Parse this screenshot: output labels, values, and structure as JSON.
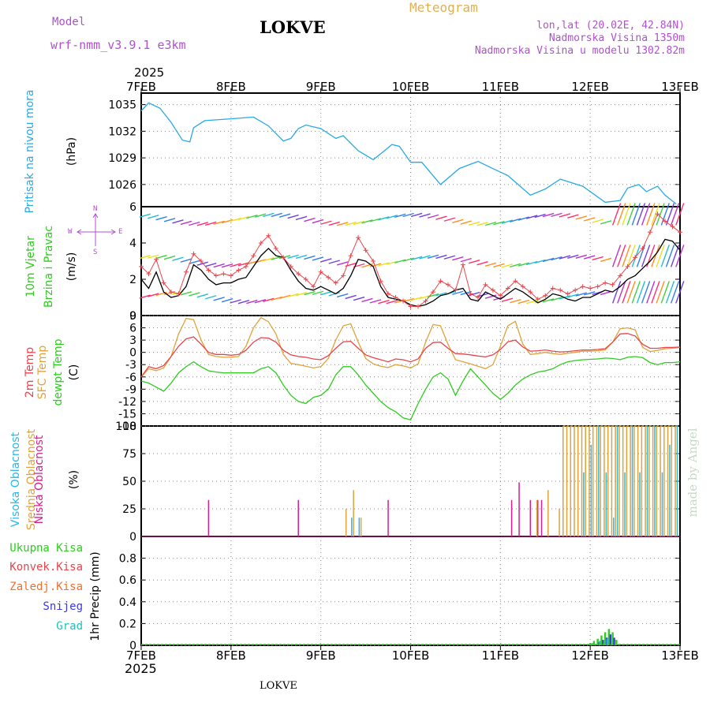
{
  "header": {
    "model_label": "Model",
    "model_name": "wrf-nmm_v3.9.1  e3km",
    "station": "LOKVE",
    "meteogram": "Meteogram",
    "coords": "lon,lat (20.02E, 42.84N)",
    "elevation": "Nadmorska Visina 1350m",
    "model_elevation": "Nadmorska Visina u modelu 1302.82m",
    "footer_station": "LOKVE",
    "credit": "made by Angel"
  },
  "time_axis": {
    "year": "2025",
    "labels": [
      "7FEB",
      "8FEB",
      "9FEB",
      "10FEB",
      "11FEB",
      "12FEB",
      "13FEB"
    ]
  },
  "colors": {
    "pressure": "#29a9e6",
    "wind": "#000000",
    "gust": "#e8454b",
    "temp2m": "#e8454b",
    "sfc": "#e0a23c",
    "dew": "#2ecc1e",
    "high_cloud": "#28b8e8",
    "mid_cloud": "#e0a23c",
    "low_cloud": "#d41f8f",
    "total_precip": "#2ecc1e",
    "snow": "#3a3ae0",
    "grad": "#20c0c0"
  },
  "panels": {
    "pressure": {
      "label": "Pritisak na nivou mora",
      "unit": "(hPa)"
    },
    "wind": {
      "label1": "10m Vjetar",
      "label2": "Brzina i Pravac",
      "unit": "(m/s)",
      "compass_n": "N",
      "compass_s": "S",
      "compass_w": "W",
      "compass_e": "E"
    },
    "temp": {
      "label1": "2m Temp",
      "label2": "SFC Temp",
      "label3": "dewpt Temp",
      "unit": "(C)"
    },
    "cloud": {
      "label1": "Visoka Oblacnost",
      "label2": "Srednja Oblacnost",
      "label3": "Niska Oblacnost",
      "unit": "(%)"
    },
    "precip": {
      "legend": [
        "Ukupna Kisa",
        "Konvek.Kisa",
        "Zaledj.Kisa",
        "Snijeg",
        "Grad"
      ],
      "unit": "1hr Precip (mm)"
    }
  },
  "chart_data": [
    {
      "type": "line",
      "title": "Pritisak na nivou mora",
      "ylabel": "(hPa)",
      "ylim": [
        1023.5,
        1036.3
      ],
      "yticks": [
        "1026",
        "1029",
        "1032",
        "1035"
      ],
      "x_hours": [
        0,
        2,
        5,
        8,
        11,
        13,
        14,
        17,
        24,
        30,
        34,
        38,
        40,
        42,
        44,
        48,
        52,
        54,
        58,
        62,
        65,
        67,
        69,
        72,
        75,
        80,
        85,
        90,
        93,
        98,
        104,
        108,
        112,
        118,
        124,
        128,
        130,
        133,
        135,
        138,
        140,
        143
      ],
      "series": [
        {
          "name": "pressure",
          "values": [
            1034.3,
            1035.2,
            1034.6,
            1033.0,
            1031.0,
            1030.8,
            1032.4,
            1033.2,
            1033.4,
            1033.6,
            1032.6,
            1030.9,
            1031.2,
            1032.3,
            1032.7,
            1032.3,
            1031.2,
            1031.5,
            1029.8,
            1028.8,
            1029.8,
            1030.5,
            1030.3,
            1028.5,
            1028.5,
            1026.0,
            1027.8,
            1028.6,
            1028.0,
            1027.0,
            1024.8,
            1025.5,
            1026.6,
            1025.8,
            1024.0,
            1024.2,
            1025.6,
            1026.0,
            1025.2,
            1025.8,
            1024.8,
            1023.8
          ]
        }
      ]
    },
    {
      "type": "line",
      "title": "10m Vjetar Brzina i Pravac",
      "ylabel": "(m/s)",
      "ylim": [
        0,
        6
      ],
      "yticks": [
        "0",
        "2",
        "4",
        "6"
      ],
      "x_hours": [
        0,
        2,
        4,
        6,
        8,
        10,
        12,
        14,
        16,
        18,
        20,
        22,
        24,
        26,
        28,
        30,
        32,
        34,
        36,
        38,
        40,
        42,
        44,
        46,
        48,
        50,
        52,
        54,
        56,
        58,
        60,
        62,
        64,
        66,
        68,
        70,
        72,
        74,
        76,
        78,
        80,
        82,
        84,
        86,
        88,
        90,
        92,
        94,
        96,
        98,
        100,
        102,
        104,
        106,
        108,
        110,
        112,
        114,
        116,
        118,
        120,
        122,
        124,
        126,
        128,
        130,
        132,
        134,
        136,
        138,
        140,
        142,
        144
      ],
      "series": [
        {
          "name": "wind speed",
          "values": [
            2.0,
            1.5,
            2.4,
            1.3,
            1.0,
            1.1,
            1.6,
            2.8,
            2.5,
            2.0,
            1.7,
            1.8,
            1.8,
            2.0,
            2.1,
            2.7,
            3.3,
            3.7,
            3.3,
            3.2,
            2.5,
            1.9,
            1.5,
            1.4,
            1.6,
            1.4,
            1.2,
            1.5,
            2.2,
            3.1,
            3.0,
            2.7,
            1.6,
            1.0,
            0.9,
            0.8,
            0.6,
            0.5,
            0.6,
            0.8,
            1.1,
            1.2,
            1.4,
            1.5,
            0.9,
            0.8,
            1.3,
            1.1,
            0.9,
            1.2,
            1.5,
            1.3,
            1.0,
            0.7,
            0.9,
            1.2,
            1.1,
            0.9,
            0.8,
            1.0,
            1.0,
            1.2,
            1.4,
            1.3,
            1.6,
            2.0,
            2.2,
            2.6,
            3.0,
            3.5,
            4.2,
            4.1,
            3.6
          ]
        },
        {
          "name": "wind gust",
          "values": [
            2.7,
            2.3,
            3.1,
            1.8,
            1.3,
            1.2,
            2.4,
            3.4,
            3.0,
            2.5,
            2.2,
            2.3,
            2.2,
            2.5,
            2.7,
            3.3,
            4.0,
            4.4,
            3.7,
            3.2,
            2.7,
            2.3,
            2.0,
            1.6,
            2.4,
            2.1,
            1.8,
            2.2,
            3.3,
            4.3,
            3.6,
            3.0,
            1.9,
            1.2,
            1.0,
            0.8,
            0.5,
            0.5,
            0.8,
            1.3,
            1.9,
            1.7,
            1.4,
            2.8,
            1.2,
            1.0,
            1.7,
            1.4,
            1.1,
            1.5,
            1.9,
            1.6,
            1.3,
            0.9,
            1.1,
            1.5,
            1.4,
            1.2,
            1.4,
            1.6,
            1.5,
            1.6,
            1.8,
            1.7,
            2.2,
            2.7,
            3.2,
            3.7,
            4.6,
            5.6,
            5.2,
            4.9,
            4.6
          ]
        }
      ]
    },
    {
      "type": "line",
      "title": "2m Temp / SFC Temp / dewpt Temp",
      "ylabel": "(C)",
      "ylim": [
        -18,
        9
      ],
      "yticks": [
        "-18",
        "-15",
        "-12",
        "-9",
        "-6",
        "-3",
        "0",
        "3",
        "6",
        "9"
      ],
      "x_hours": [
        0,
        2,
        4,
        6,
        8,
        10,
        12,
        14,
        16,
        18,
        20,
        22,
        24,
        26,
        28,
        30,
        32,
        34,
        36,
        38,
        40,
        42,
        44,
        46,
        48,
        50,
        52,
        54,
        56,
        58,
        60,
        62,
        64,
        66,
        68,
        70,
        72,
        74,
        76,
        78,
        80,
        82,
        84,
        86,
        88,
        90,
        92,
        94,
        96,
        98,
        100,
        102,
        104,
        106,
        108,
        110,
        112,
        114,
        116,
        118,
        120,
        122,
        124,
        126,
        128,
        130,
        132,
        134,
        136,
        138,
        140,
        142,
        144
      ],
      "series": [
        {
          "name": "2m Temp",
          "values": [
            -6.0,
            -3.5,
            -4.0,
            -3.2,
            -1.0,
            1.5,
            3.3,
            3.8,
            2.0,
            0.0,
            -0.5,
            -0.5,
            -0.7,
            -0.5,
            0.5,
            2.5,
            3.6,
            3.5,
            2.5,
            0.5,
            -0.6,
            -1.0,
            -1.2,
            -1.6,
            -1.8,
            -0.8,
            1.0,
            2.6,
            2.7,
            1.0,
            -0.6,
            -1.3,
            -1.8,
            -2.3,
            -1.6,
            -1.8,
            -2.3,
            -1.6,
            1.0,
            2.4,
            2.5,
            1.0,
            -0.3,
            -0.4,
            -0.6,
            -0.9,
            -1.1,
            -0.6,
            0.7,
            2.6,
            3.0,
            1.3,
            0.3,
            0.4,
            0.6,
            0.3,
            0.1,
            0.2,
            0.4,
            0.6,
            0.6,
            0.7,
            0.9,
            2.5,
            4.5,
            4.6,
            4.0,
            2.0,
            1.0,
            1.0,
            1.2,
            1.2,
            1.3
          ]
        },
        {
          "name": "SFC Temp",
          "values": [
            -6.0,
            -4.0,
            -4.5,
            -3.8,
            -1.0,
            4.5,
            8.3,
            8.0,
            3.0,
            -0.5,
            -1.0,
            -1.2,
            -1.2,
            -1.0,
            1.5,
            6.0,
            8.5,
            7.5,
            4.5,
            -0.5,
            -2.7,
            -3.0,
            -3.4,
            -3.8,
            -3.5,
            -1.5,
            3.0,
            6.5,
            7.0,
            2.5,
            -1.5,
            -2.8,
            -3.4,
            -3.7,
            -3.0,
            -3.3,
            -3.8,
            -2.8,
            2.5,
            6.8,
            6.5,
            2.0,
            -1.8,
            -2.3,
            -2.8,
            -3.4,
            -4.0,
            -3.0,
            1.5,
            6.5,
            7.6,
            2.0,
            -0.5,
            -0.3,
            0.0,
            -0.3,
            -0.5,
            -0.2,
            0.0,
            0.3,
            0.3,
            0.4,
            0.6,
            2.5,
            5.8,
            6.0,
            5.5,
            1.2,
            0.2,
            0.5,
            0.9,
            1.0,
            1.2
          ]
        },
        {
          "name": "dewpt Temp",
          "values": [
            -7.0,
            -7.5,
            -8.5,
            -9.5,
            -7.5,
            -5.0,
            -3.5,
            -2.3,
            -3.5,
            -4.5,
            -4.8,
            -5.0,
            -5.0,
            -5.0,
            -5.0,
            -5.0,
            -4.0,
            -3.5,
            -5.0,
            -8.0,
            -10.5,
            -12.0,
            -12.5,
            -11.0,
            -10.5,
            -9.0,
            -5.5,
            -3.5,
            -3.5,
            -5.5,
            -8.0,
            -10.0,
            -12.0,
            -13.5,
            -14.5,
            -16.0,
            -16.5,
            -12.5,
            -9.0,
            -6.0,
            -5.0,
            -6.5,
            -10.5,
            -7.0,
            -4.0,
            -6.0,
            -8.0,
            -10.0,
            -11.5,
            -10.0,
            -8.0,
            -6.5,
            -5.5,
            -4.8,
            -4.5,
            -4.0,
            -3.0,
            -2.3,
            -2.0,
            -1.8,
            -1.7,
            -1.6,
            -1.4,
            -1.5,
            -1.8,
            -1.2,
            -1.0,
            -1.3,
            -2.5,
            -3.0,
            -2.5,
            -2.5,
            -2.3
          ]
        }
      ]
    },
    {
      "type": "bar",
      "title": "Visoka / Srednja / Niska Oblacnost",
      "ylabel": "(%)",
      "ylim": [
        0,
        100
      ],
      "yticks": [
        "0",
        "25",
        "50",
        "75",
        "100"
      ],
      "series": [
        {
          "name": "Niska Oblacnost",
          "x_hours": [
            18,
            42,
            66,
            99,
            101,
            104,
            106,
            107
          ],
          "values": [
            33,
            33,
            33,
            33,
            49,
            33,
            33,
            33
          ]
        },
        {
          "name": "Srednja Oblacnost",
          "x_hours": [
            55,
            57,
            59,
            106,
            109,
            112,
            113,
            114,
            115,
            116,
            117,
            118,
            119,
            120,
            121,
            122,
            123,
            124,
            125,
            126,
            127,
            128,
            129,
            130,
            131,
            132,
            133,
            134,
            135,
            136,
            137,
            138,
            139,
            140,
            141,
            142,
            143
          ],
          "values": [
            25,
            42,
            17,
            33,
            42,
            25,
            100,
            100,
            100,
            100,
            100,
            100,
            100,
            100,
            100,
            100,
            100,
            100,
            100,
            100,
            100,
            100,
            100,
            100,
            100,
            100,
            100,
            100,
            100,
            100,
            100,
            100,
            100,
            100,
            100,
            100,
            100
          ]
        },
        {
          "name": "Visoka Oblacnost",
          "x_hours": [
            56,
            58,
            118,
            120,
            122,
            124,
            126,
            127,
            129,
            131,
            133,
            135,
            137,
            139,
            141,
            143
          ],
          "values": [
            17,
            17,
            58,
            83,
            100,
            58,
            17,
            100,
            58,
            100,
            58,
            100,
            100,
            58,
            83,
            100
          ]
        }
      ]
    },
    {
      "type": "bar",
      "title": "1hr Precip (mm)",
      "ylabel": "1hr Precip (mm)",
      "ylim": [
        0,
        1.0
      ],
      "yticks": [
        "0",
        "0.2",
        "0.4",
        "0.6",
        "0.8"
      ],
      "series": [
        {
          "name": "Ukupna Kisa",
          "x_hours": [
            120,
            121,
            122,
            123,
            124,
            125,
            126,
            127
          ],
          "values": [
            0.02,
            0.04,
            0.06,
            0.09,
            0.12,
            0.15,
            0.12,
            0.05
          ]
        },
        {
          "name": "Snijeg",
          "x_hours": [
            122,
            123,
            124,
            125,
            126
          ],
          "values": [
            0.03,
            0.05,
            0.07,
            0.1,
            0.07
          ]
        },
        {
          "name": "Grad",
          "x_hours": [
            121,
            123,
            125
          ],
          "values": [
            0.02,
            0.04,
            0.06
          ]
        }
      ]
    }
  ]
}
